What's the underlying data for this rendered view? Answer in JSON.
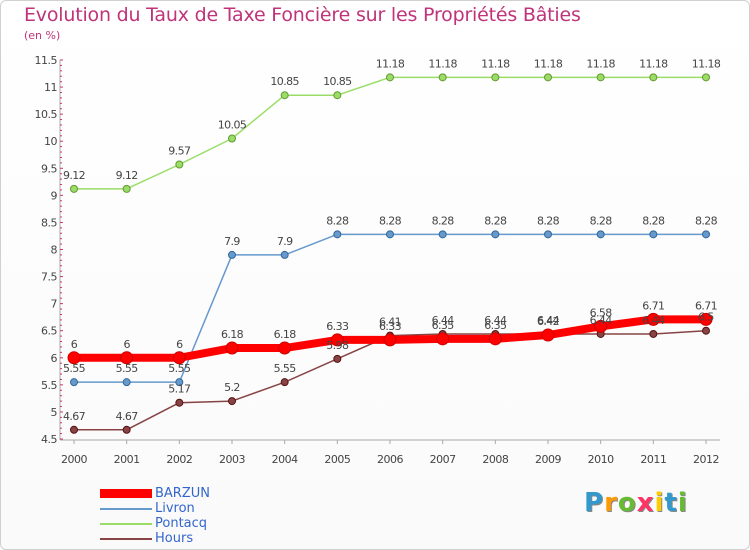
{
  "title": "Evolution du Taux de Taxe Foncière sur les Propriétés Bâties",
  "subtitle": "(en %)",
  "chart_data": {
    "type": "line",
    "title": "Evolution du Taux de Taxe Foncière sur les Propriétés Bâties",
    "ylabel": "(en %)",
    "xlabel": "",
    "x": [
      "2000",
      "2001",
      "2002",
      "2003",
      "2004",
      "2005",
      "2006",
      "2007",
      "2008",
      "2009",
      "2010",
      "2011",
      "2012"
    ],
    "ylim": [
      4.5,
      11.5
    ],
    "yticks": [
      "4.5",
      "5",
      "5.5",
      "6",
      "6.5",
      "7",
      "7.5",
      "8",
      "8.5",
      "9",
      "9.5",
      "10",
      "10.5",
      "11",
      "11.5"
    ],
    "grid": false,
    "legend_position": "bottom-left",
    "series": [
      {
        "name": "BARZUN",
        "color": "#ff0000",
        "width": 8,
        "values": [
          6,
          6,
          6,
          6.18,
          6.18,
          6.33,
          6.33,
          6.35,
          6.35,
          6.42,
          6.58,
          6.71,
          6.71
        ],
        "labels": [
          "6",
          "6",
          "6",
          "6.18",
          "6.18",
          "6.33",
          "6.33",
          "6.35",
          "6.35",
          "6.42",
          "6.58",
          "6.71",
          "6.71"
        ]
      },
      {
        "name": "Livron",
        "color": "#6699cc",
        "width": 1.5,
        "values": [
          5.55,
          5.55,
          5.55,
          7.9,
          7.9,
          8.28,
          8.28,
          8.28,
          8.28,
          8.28,
          8.28,
          8.28,
          8.28
        ],
        "labels": [
          "5.55",
          "5.55",
          "5.55",
          "7.9",
          "7.9",
          "8.28",
          "8.28",
          "8.28",
          "8.28",
          "8.28",
          "8.28",
          "8.28",
          "8.28"
        ]
      },
      {
        "name": "Pontacq",
        "color": "#99dd66",
        "width": 1.5,
        "values": [
          9.12,
          9.12,
          9.57,
          10.05,
          10.85,
          10.85,
          11.18,
          11.18,
          11.18,
          11.18,
          11.18,
          11.18,
          11.18
        ],
        "labels": [
          "9.12",
          "9.12",
          "9.57",
          "10.05",
          "10.85",
          "10.85",
          "11.18",
          "11.18",
          "11.18",
          "11.18",
          "11.18",
          "11.18",
          "11.18"
        ]
      },
      {
        "name": "Hours",
        "color": "#884444",
        "width": 1.5,
        "values": [
          4.67,
          4.67,
          5.17,
          5.2,
          5.55,
          5.98,
          6.41,
          6.44,
          6.44,
          6.44,
          6.44,
          6.44,
          6.5
        ],
        "labels": [
          "4.67",
          "4.67",
          "5.17",
          "5.2",
          "5.55",
          "5.98",
          "6.41",
          "6.44",
          "6.44",
          "6.44",
          "6.44",
          "6.44",
          "6.5"
        ]
      }
    ]
  },
  "legend": [
    {
      "label": "BARZUN",
      "color": "#ff0000"
    },
    {
      "label": "Livron",
      "color": "#6699cc"
    },
    {
      "label": "Pontacq",
      "color": "#99dd66"
    },
    {
      "label": "Hours",
      "color": "#884444"
    }
  ],
  "logo": {
    "letters": [
      "P",
      "r",
      "o",
      "x",
      "i",
      "t",
      "i"
    ],
    "colors": [
      "#3399cc",
      "#ff9900",
      "#66bb33",
      "#ff3366",
      "#ffcc00",
      "#3399cc",
      "#66bb33"
    ]
  }
}
